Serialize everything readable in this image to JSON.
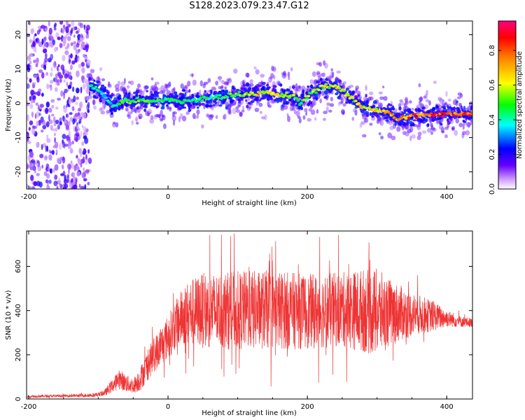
{
  "figure": {
    "title": "S128.2023.079.23.47.G12"
  },
  "chart_data": [
    {
      "type": "heatmap",
      "xlabel": "Height of straight line (km)",
      "ylabel": "Frequency (Hz)",
      "xlim": [
        -203,
        437
      ],
      "ylim": [
        -25,
        24
      ],
      "xticks": [
        -200,
        0,
        200,
        400
      ],
      "yticks": [
        -20,
        -10,
        0,
        10,
        20
      ],
      "colorbar": {
        "label": "Normalized spectral amplitude",
        "range": [
          0,
          0.97
        ],
        "ticks": [
          0.0,
          0.2,
          0.4,
          0.6,
          0.8
        ],
        "tick_labels": [
          "0.0",
          "0.2",
          "0.4",
          "0.6",
          "0.8"
        ],
        "colormap": [
          "#ffffff",
          "#5500ff",
          "#0000ff",
          "#00ffff",
          "#00ff00",
          "#ffff00",
          "#ff8000",
          "#ff0000",
          "#ff0080"
        ]
      },
      "noise_region": {
        "x": [
          -203,
          -112
        ],
        "y": [
          -25,
          24
        ]
      },
      "ridge": {
        "x": [
          -112,
          -100,
          -90,
          -80,
          -70,
          -60,
          -50,
          -40,
          -30,
          -20,
          -10,
          0,
          20,
          40,
          60,
          80,
          100,
          120,
          140,
          160,
          180,
          190,
          200,
          220,
          240,
          260,
          280,
          300,
          320,
          330,
          340,
          360,
          380,
          400,
          420,
          437
        ],
        "y": [
          5,
          4,
          2,
          -1,
          0,
          1,
          0.5,
          1,
          0.5,
          1,
          0.5,
          1,
          0.5,
          1,
          1.5,
          2,
          2.5,
          3,
          3,
          2.5,
          2,
          0,
          2,
          5,
          5,
          2,
          -1,
          -2,
          -3,
          -5,
          -4,
          -3.5,
          -3.5,
          -3,
          -3,
          -3
        ],
        "amplitude": [
          0.45,
          0.45,
          0.4,
          0.45,
          0.5,
          0.55,
          0.55,
          0.6,
          0.55,
          0.55,
          0.5,
          0.5,
          0.5,
          0.5,
          0.5,
          0.55,
          0.6,
          0.65,
          0.7,
          0.65,
          0.6,
          0.55,
          0.6,
          0.65,
          0.7,
          0.65,
          0.7,
          0.75,
          0.8,
          0.85,
          0.85,
          0.9,
          0.9,
          0.9,
          0.9,
          0.9
        ]
      }
    },
    {
      "type": "line",
      "xlabel": "Height of straight line (km)",
      "ylabel": "SNR (10 * v/v)",
      "xlim": [
        -203,
        437
      ],
      "ylim": [
        0,
        760
      ],
      "xticks": [
        -200,
        0,
        200,
        400
      ],
      "yticks": [
        0,
        200,
        400,
        600
      ],
      "color": "#ee3333",
      "envelope": {
        "x": [
          -203,
          -150,
          -120,
          -100,
          -90,
          -80,
          -70,
          -60,
          -50,
          -40,
          -30,
          -20,
          -10,
          0,
          10,
          20,
          30,
          50,
          100,
          150,
          200,
          250,
          280,
          300,
          320,
          350,
          380,
          400,
          420,
          437
        ],
        "mean": [
          12,
          14,
          16,
          20,
          30,
          60,
          90,
          70,
          60,
          90,
          150,
          200,
          240,
          280,
          330,
          370,
          390,
          400,
          400,
          405,
          395,
          405,
          400,
          390,
          390,
          385,
          375,
          365,
          350,
          345
        ],
        "spread": [
          6,
          6,
          8,
          10,
          15,
          30,
          45,
          40,
          35,
          55,
          70,
          80,
          90,
          100,
          110,
          130,
          150,
          170,
          180,
          180,
          170,
          170,
          190,
          200,
          150,
          100,
          70,
          40,
          25,
          20
        ]
      }
    }
  ]
}
